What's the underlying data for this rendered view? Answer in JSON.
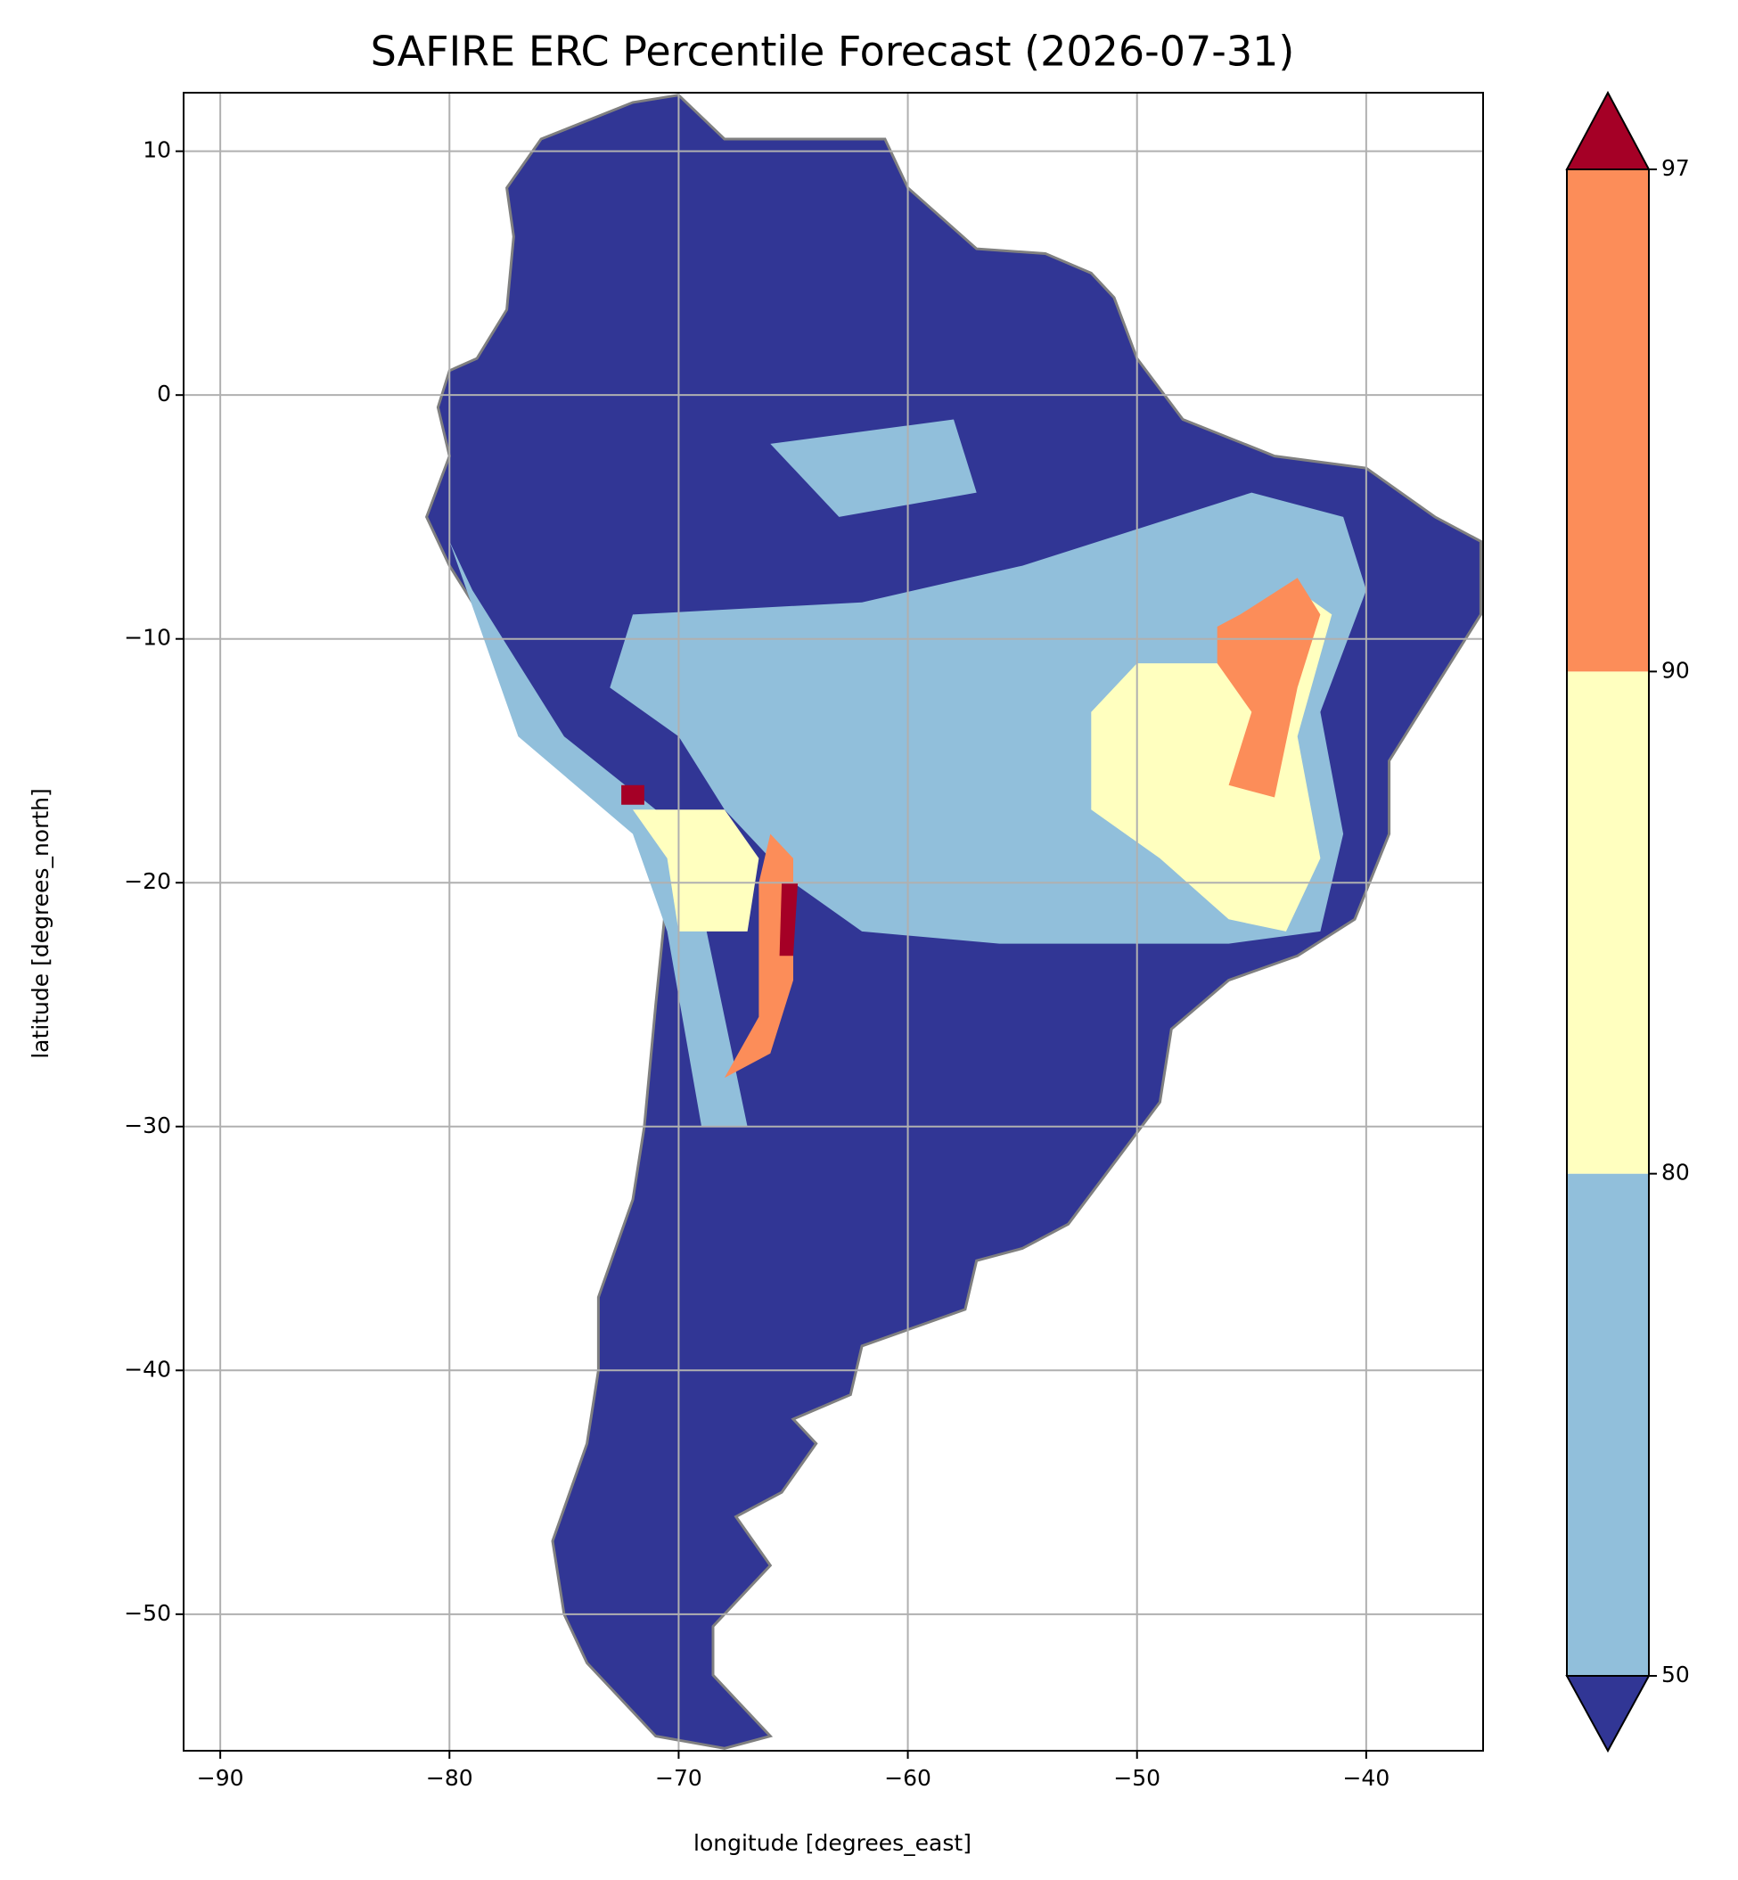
{
  "chart_data": {
    "type": "map",
    "title": "SAFIRE ERC Percentile Forecast (2026-07-31)",
    "x_label": "longitude [degrees_east]",
    "y_label": "latitude [degrees_north]",
    "xlim": [
      -91.6,
      -34.9
    ],
    "ylim": [
      -55.6,
      12.4
    ],
    "xticks": [
      {
        "value": -90,
        "label": "−90"
      },
      {
        "value": -80,
        "label": "−80"
      },
      {
        "value": -70,
        "label": "−70"
      },
      {
        "value": -60,
        "label": "−60"
      },
      {
        "value": -50,
        "label": "−50"
      },
      {
        "value": -40,
        "label": "−40"
      }
    ],
    "yticks": [
      {
        "value": -50,
        "label": "−50"
      },
      {
        "value": -40,
        "label": "−40"
      },
      {
        "value": -30,
        "label": "−30"
      },
      {
        "value": -20,
        "label": "−20"
      },
      {
        "value": -10,
        "label": "−10"
      },
      0,
      10
    ],
    "grid": true,
    "colorbar": {
      "levels": [
        50,
        80,
        90,
        97
      ],
      "colors": [
        "#91bfdb",
        "#ffffbf",
        "#fc8d59"
      ],
      "under_color": "#313695",
      "over_color": "#a50026"
    }
  }
}
